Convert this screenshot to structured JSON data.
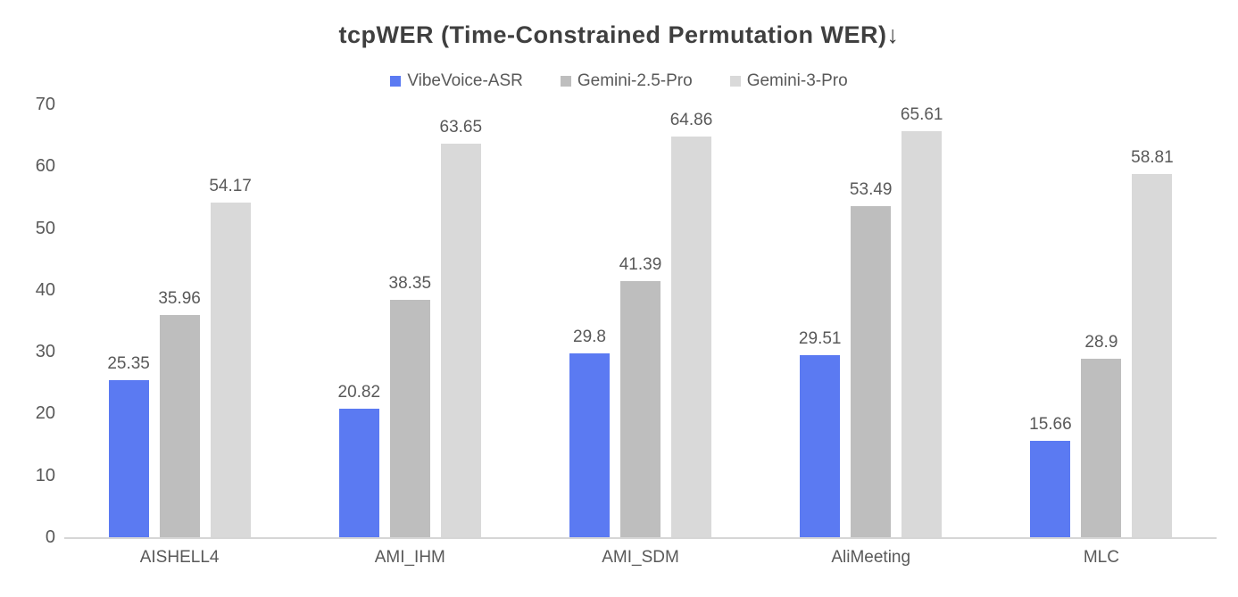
{
  "colors": {
    "background": "#ffffff",
    "title_text": "#3f3f3f",
    "muted_text": "#595959",
    "axis_line": "#d6d6d6"
  },
  "chart_data": {
    "type": "bar",
    "title": "tcpWER (Time-Constrained Permutation WER)↓",
    "categories": [
      "AISHELL4",
      "AMI_IHM",
      "AMI_SDM",
      "AliMeeting",
      "MLC"
    ],
    "series": [
      {
        "name": "VibeVoice-ASR",
        "color": "#5b7af2",
        "values": [
          25.35,
          20.82,
          29.8,
          29.51,
          15.66
        ]
      },
      {
        "name": "Gemini-2.5-Pro",
        "color": "#bebebe",
        "values": [
          35.96,
          38.35,
          41.39,
          53.49,
          28.9
        ]
      },
      {
        "name": "Gemini-3-Pro",
        "color": "#d9d9d9",
        "values": [
          54.17,
          63.65,
          64.86,
          65.61,
          58.81
        ]
      }
    ],
    "xlabel": "",
    "ylabel": "",
    "ylim": [
      0,
      70
    ],
    "yticks": [
      0,
      10,
      20,
      30,
      40,
      50,
      60,
      70
    ],
    "grid": false,
    "legend_position": "top",
    "data_labels": true
  }
}
